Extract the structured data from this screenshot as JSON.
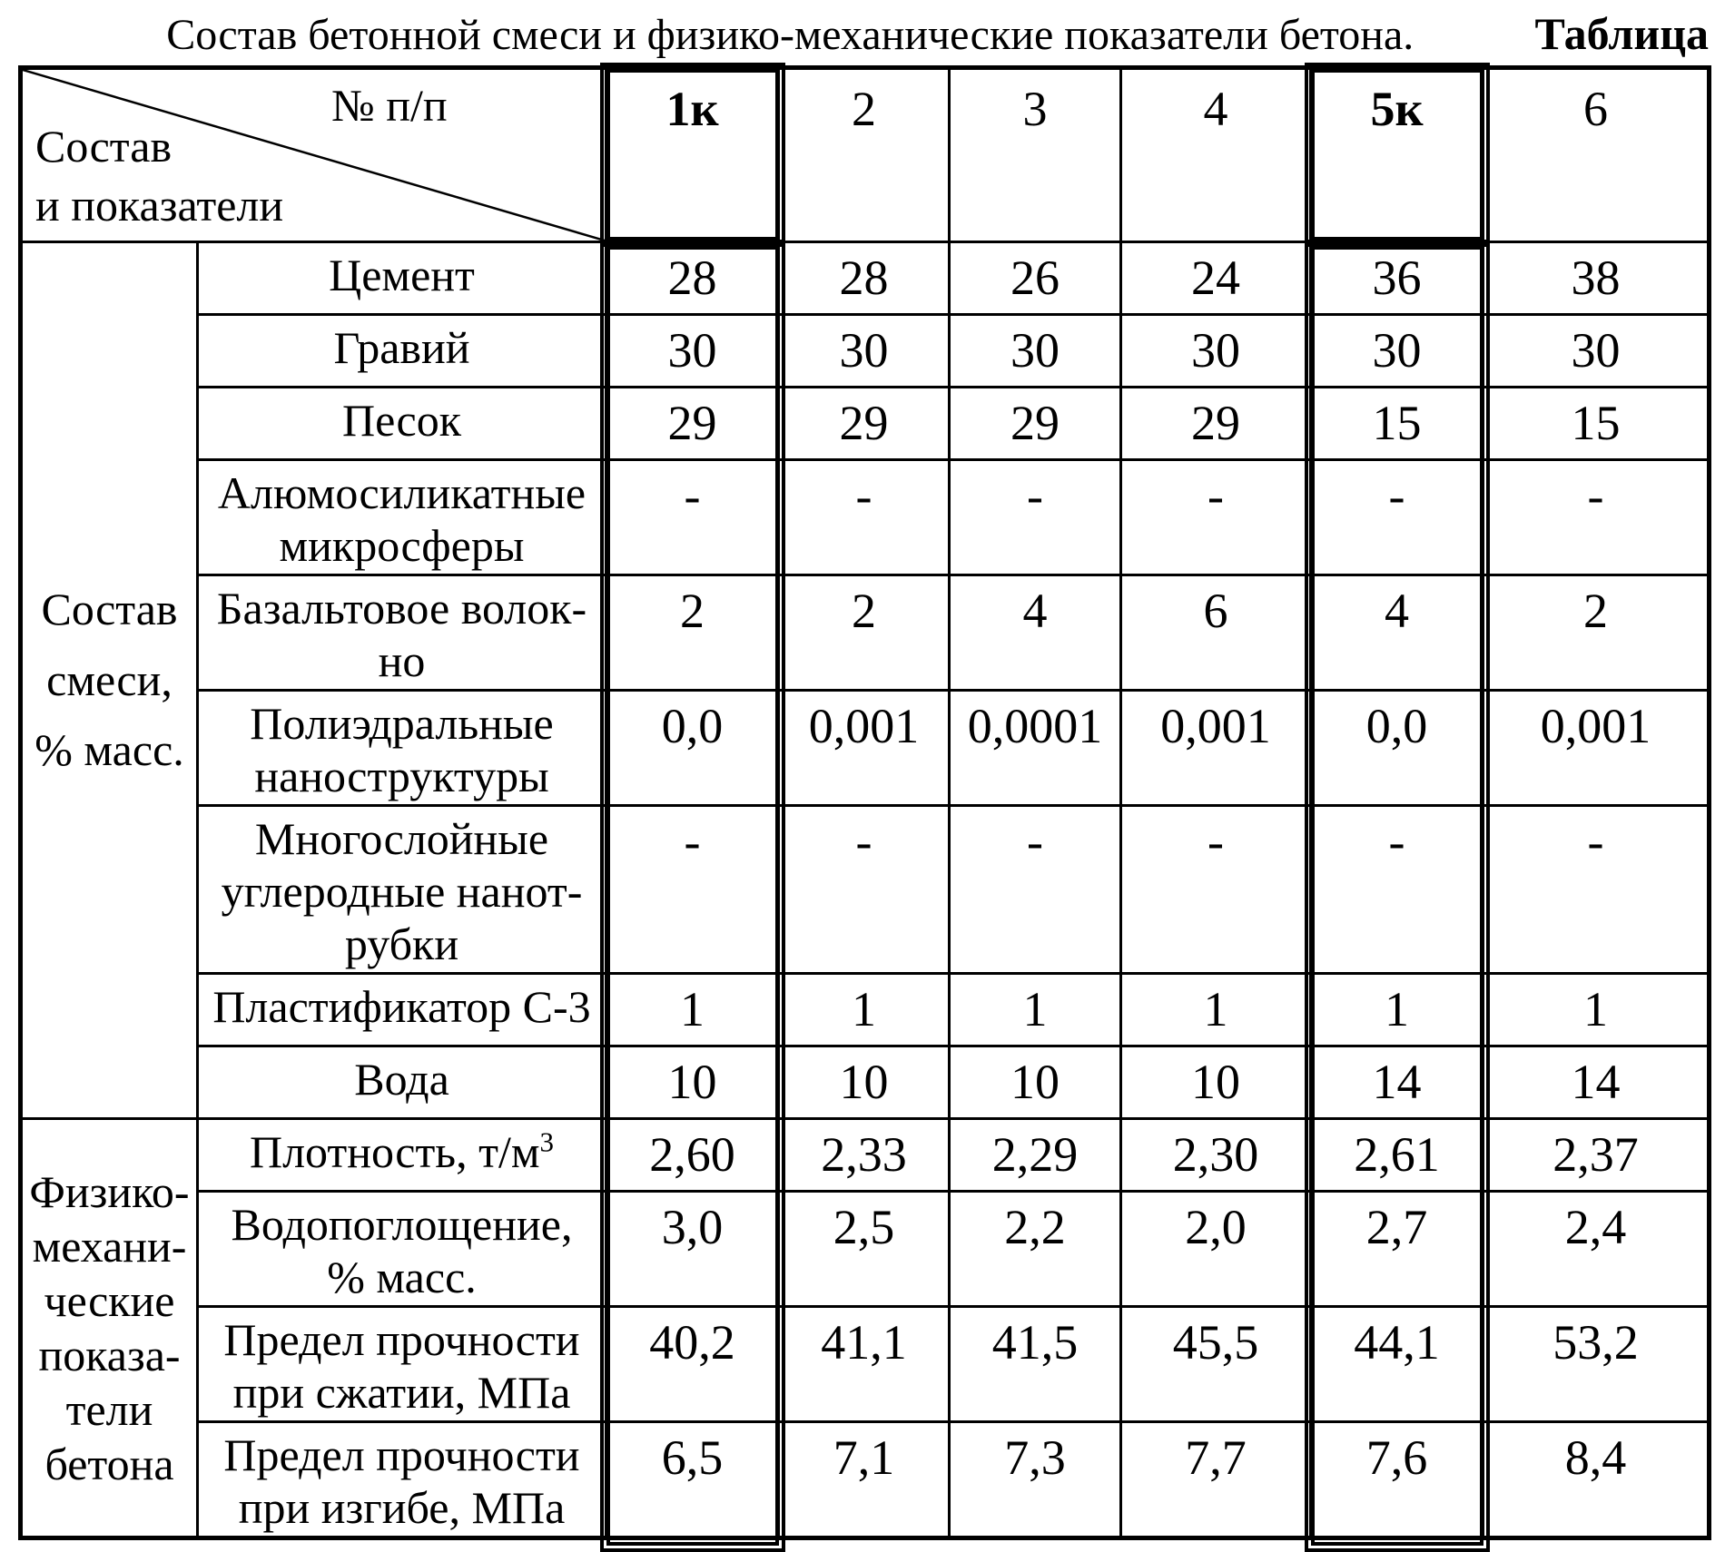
{
  "title": "Состав бетонной смеси и физико-механические показатели бетона.",
  "table_label": "Таблица",
  "header": {
    "corner_top": "№ п/п",
    "corner_bottom": "Состав\nи показатели",
    "columns": [
      "1к",
      "2",
      "3",
      "4",
      "5к",
      "6"
    ]
  },
  "groups": [
    {
      "label": "Состав\nсмеси,\n% масс.",
      "rows": [
        {
          "label": "Цемент",
          "values": [
            "28",
            "28",
            "26",
            "24",
            "36",
            "38"
          ]
        },
        {
          "label": "Гравий",
          "values": [
            "30",
            "30",
            "30",
            "30",
            "30",
            "30"
          ]
        },
        {
          "label": "Песок",
          "values": [
            "29",
            "29",
            "29",
            "29",
            "15",
            "15"
          ]
        },
        {
          "label": "Алюмосиликатные\nмикросферы",
          "values": [
            "-",
            "-",
            "-",
            "-",
            "-",
            "-"
          ]
        },
        {
          "label": "Базальтовое волок-\nно",
          "values": [
            "2",
            "2",
            "4",
            "6",
            "4",
            "2"
          ]
        },
        {
          "label": "Полиэдральные\nнаноструктуры",
          "values": [
            "0,0",
            "0,001",
            "0,0001",
            "0,001",
            "0,0",
            "0,001"
          ]
        },
        {
          "label": "Многослойные\nуглеродные нанот-\nрубки",
          "values": [
            "-",
            "-",
            "-",
            "-",
            "-",
            "-"
          ]
        },
        {
          "label": "Пластификатор С-3",
          "values": [
            "1",
            "1",
            "1",
            "1",
            "1",
            "1"
          ]
        },
        {
          "label": "Вода",
          "values": [
            "10",
            "10",
            "10",
            "10",
            "14",
            "14"
          ]
        }
      ]
    },
    {
      "label": "Физико-\nмехани-\nческие\nпоказа-\nтели\nбетона",
      "rows": [
        {
          "label": "Плотность, т/м",
          "label_sup": "3",
          "values": [
            "2,60",
            "2,33",
            "2,29",
            "2,30",
            "2,61",
            "2,37"
          ]
        },
        {
          "label": "Водопоглощение,\n% масс.",
          "values": [
            "3,0",
            "2,5",
            "2,2",
            "2,0",
            "2,7",
            "2,4"
          ]
        },
        {
          "label": "Предел прочности\nпри сжатии, МПа",
          "values": [
            "40,2",
            "41,1",
            "41,5",
            "45,5",
            "44,1",
            "53,2"
          ]
        },
        {
          "label": "Предел прочности\nпри изгибе, МПа",
          "values": [
            "6,5",
            "7,1",
            "7,3",
            "7,7",
            "7,6",
            "8,4"
          ]
        }
      ]
    }
  ],
  "highlighted_columns": [
    "1к",
    "5к"
  ],
  "frame_color": "#000000"
}
